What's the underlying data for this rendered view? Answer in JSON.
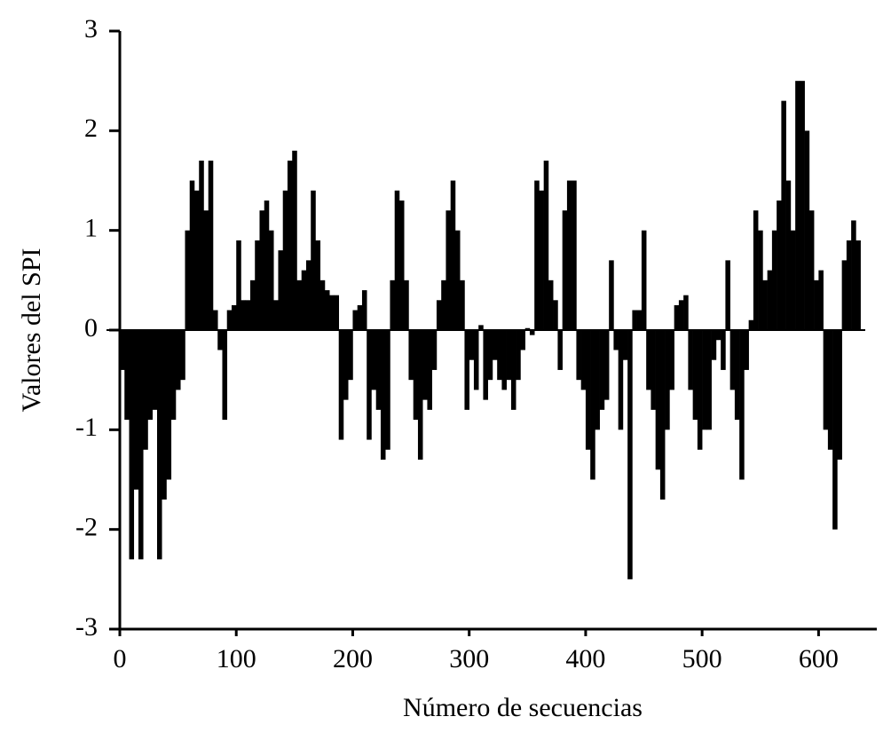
{
  "chart_data": {
    "type": "bar",
    "x_label": "Número de secuencias",
    "y_label": "Valores del SPI",
    "color": "#000000",
    "bar_width": 4,
    "xlim": [
      0,
      650
    ],
    "xticks": [
      0,
      100,
      200,
      300,
      400,
      500,
      600
    ],
    "ylim": [
      -3,
      3
    ],
    "yticks": [
      -3,
      -2,
      -1,
      0,
      1,
      2,
      3
    ],
    "x": [
      2,
      6,
      10,
      14,
      18,
      22,
      26,
      30,
      34,
      38,
      42,
      46,
      50,
      54,
      58,
      62,
      66,
      70,
      74,
      78,
      82,
      86,
      90,
      94,
      98,
      102,
      106,
      110,
      114,
      118,
      122,
      126,
      130,
      134,
      138,
      142,
      146,
      150,
      154,
      158,
      162,
      166,
      170,
      174,
      178,
      182,
      186,
      190,
      194,
      198,
      202,
      206,
      210,
      214,
      218,
      222,
      226,
      230,
      234,
      238,
      242,
      246,
      250,
      254,
      258,
      262,
      266,
      270,
      274,
      278,
      282,
      286,
      290,
      294,
      298,
      302,
      306,
      310,
      314,
      318,
      322,
      326,
      330,
      334,
      338,
      342,
      346,
      350,
      354,
      358,
      362,
      366,
      370,
      374,
      378,
      382,
      386,
      390,
      394,
      398,
      402,
      406,
      410,
      414,
      418,
      422,
      426,
      430,
      434,
      438,
      442,
      446,
      450,
      454,
      458,
      462,
      466,
      470,
      474,
      478,
      482,
      486,
      490,
      494,
      498,
      502,
      506,
      510,
      514,
      518,
      522,
      526,
      530,
      534,
      538,
      542,
      546,
      550,
      554,
      558,
      562,
      566,
      570,
      574,
      578,
      582,
      586,
      590,
      594,
      598,
      602,
      606,
      610,
      614,
      618,
      622,
      626,
      630,
      634
    ],
    "values": [
      -0.4,
      -0.9,
      -2.3,
      -1.6,
      -2.3,
      -1.2,
      -0.9,
      -0.8,
      -2.3,
      -1.7,
      -1.5,
      -0.9,
      -0.6,
      -0.5,
      1.0,
      1.5,
      1.4,
      1.7,
      1.2,
      1.7,
      0.2,
      -0.2,
      -0.9,
      0.2,
      0.25,
      0.9,
      0.3,
      0.3,
      0.5,
      0.9,
      1.2,
      1.3,
      1.0,
      0.3,
      0.8,
      1.4,
      1.7,
      1.8,
      0.5,
      0.6,
      0.7,
      1.4,
      0.9,
      0.5,
      0.4,
      0.35,
      0.35,
      -1.1,
      -0.7,
      -0.5,
      0.2,
      0.25,
      0.4,
      -1.1,
      -0.6,
      -0.8,
      -1.3,
      -1.2,
      0.5,
      1.4,
      1.3,
      0.5,
      -0.5,
      -0.9,
      -1.3,
      -0.7,
      -0.8,
      -0.4,
      0.3,
      0.5,
      1.2,
      1.5,
      1.0,
      0.5,
      -0.8,
      -0.3,
      -0.6,
      0.05,
      -0.7,
      -0.5,
      -0.3,
      -0.5,
      -0.6,
      -0.5,
      -0.8,
      -0.5,
      -0.2,
      0.02,
      -0.05,
      1.5,
      1.4,
      1.7,
      0.5,
      0.3,
      -0.4,
      1.2,
      1.5,
      1.5,
      -0.5,
      -0.6,
      -1.2,
      -1.5,
      -1.0,
      -0.8,
      -0.7,
      0.7,
      -0.2,
      -1.0,
      -0.3,
      -2.5,
      0.2,
      0.2,
      1.0,
      -0.6,
      -0.8,
      -1.4,
      -1.7,
      -1.0,
      -0.6,
      0.25,
      0.3,
      0.35,
      -0.6,
      -0.9,
      -1.2,
      -1.0,
      -1.0,
      -0.3,
      -0.1,
      -0.4,
      0.7,
      -0.6,
      -0.9,
      -1.5,
      -0.4,
      0.1,
      1.2,
      1.0,
      0.5,
      0.6,
      1.0,
      1.3,
      2.3,
      1.5,
      1.0,
      2.5,
      2.5,
      2.0,
      1.2,
      0.5,
      0.6,
      -1.0,
      -1.2,
      -2.0,
      -1.3,
      0.7,
      0.9,
      1.1,
      0.9
    ]
  }
}
